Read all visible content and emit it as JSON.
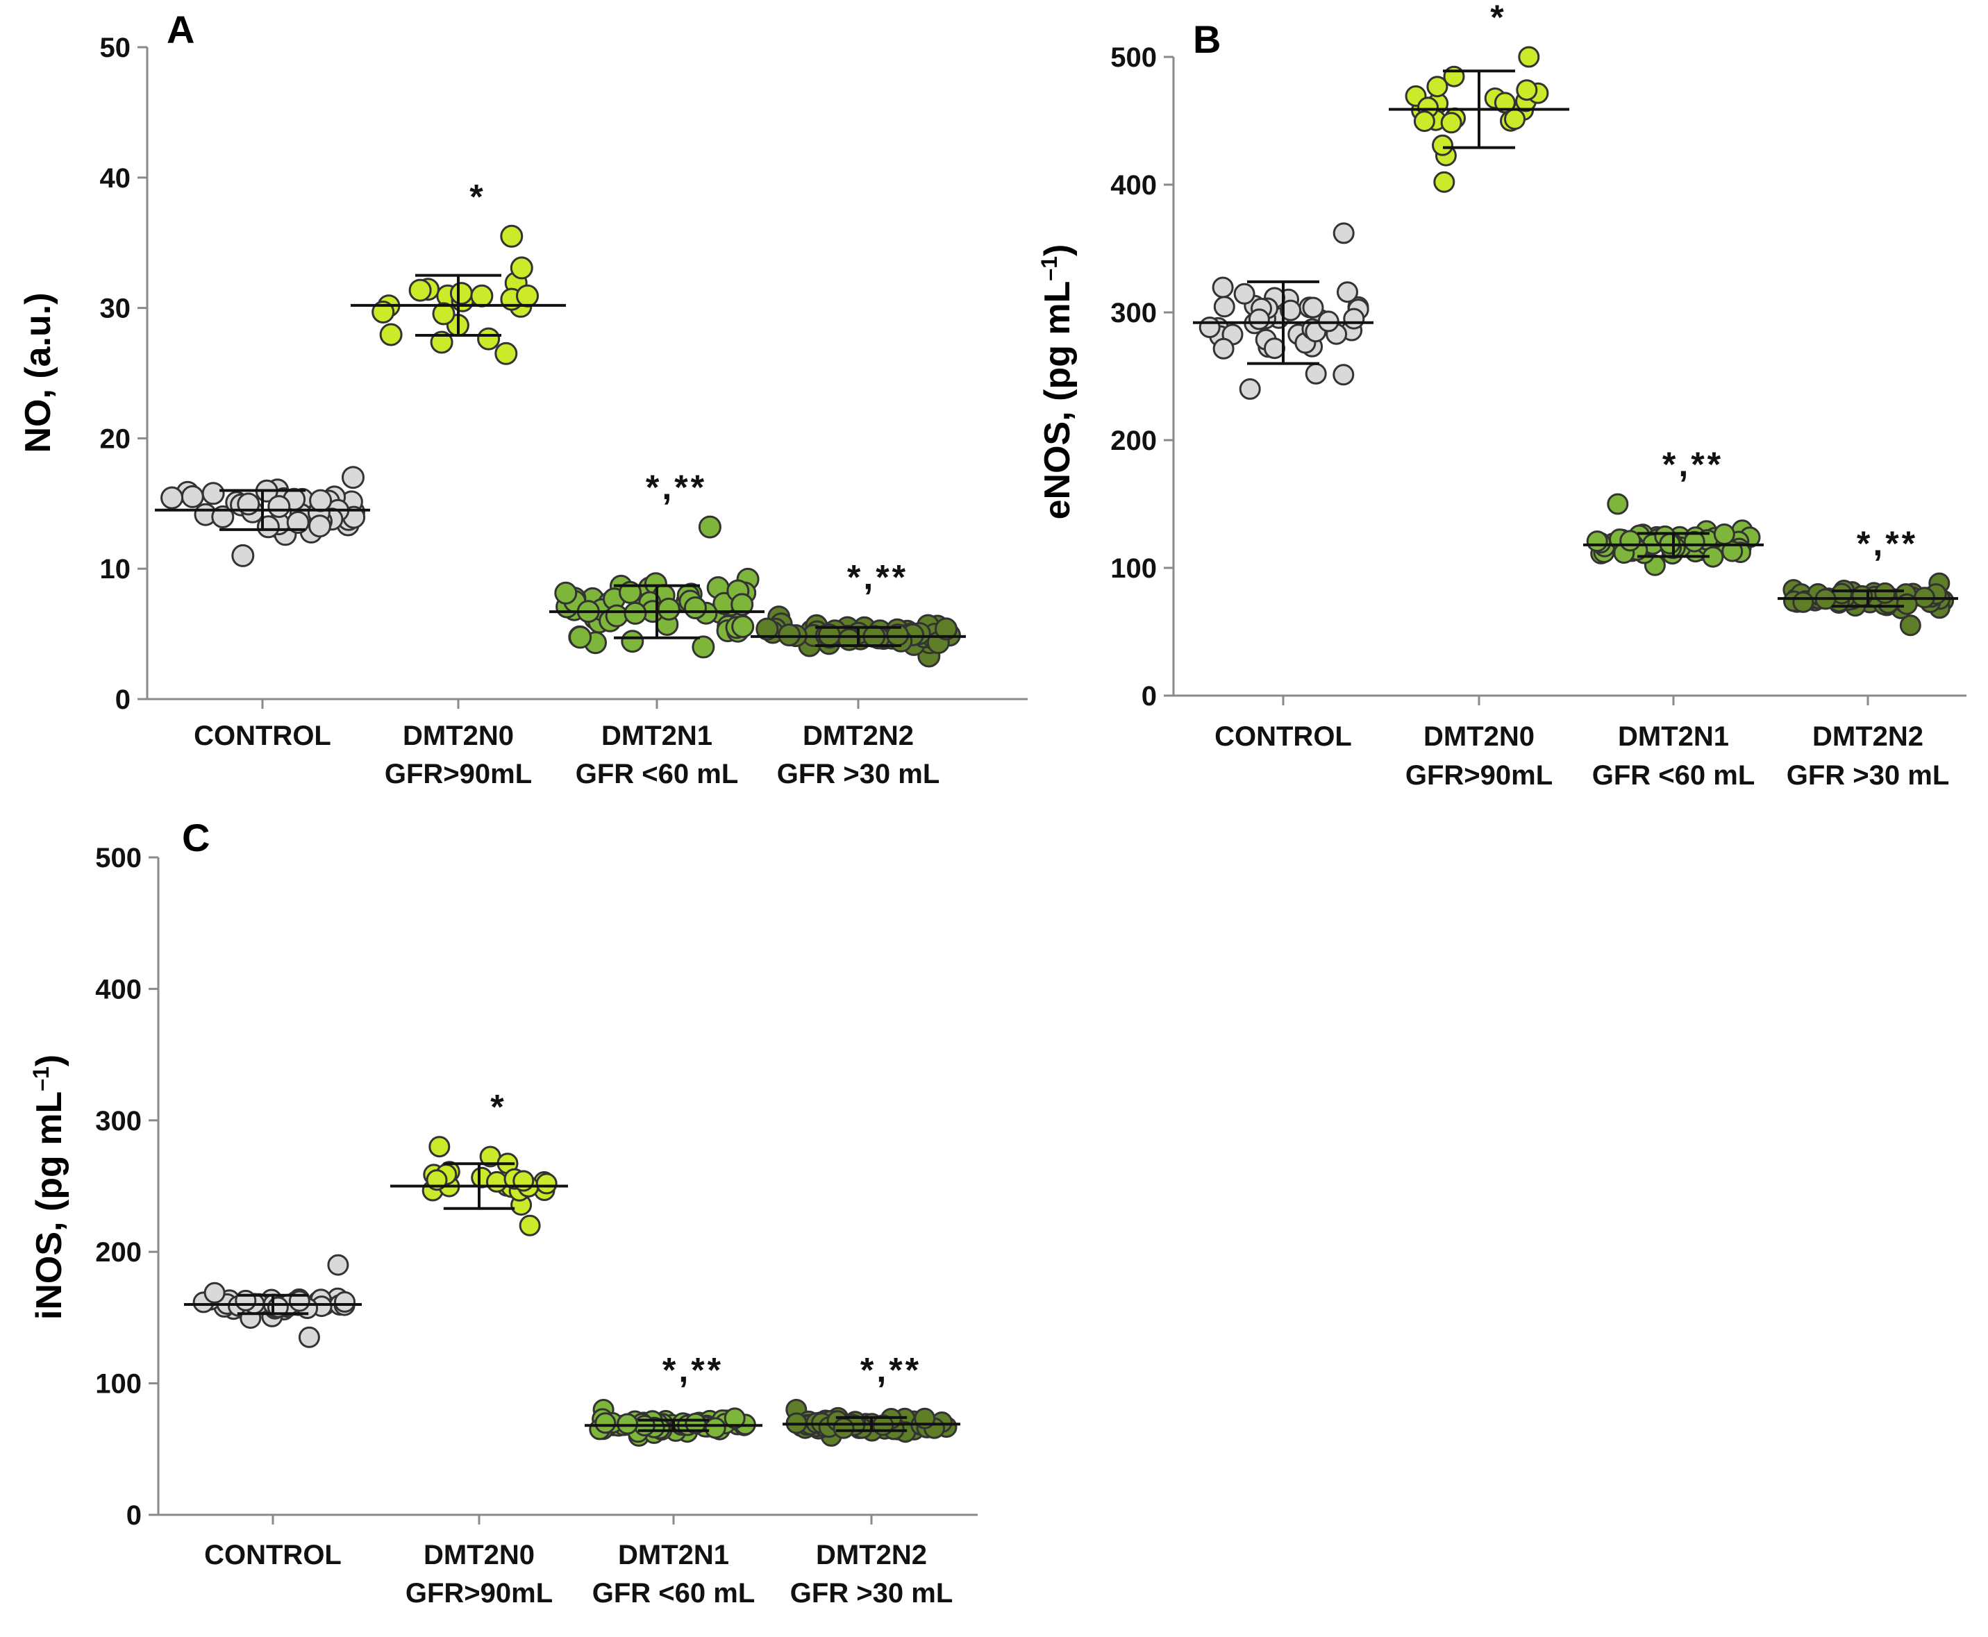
{
  "colors": {
    "CONTROL": "#d9d9d9",
    "DMT2N0": "#ccea2a",
    "DMT2N1": "#7db63a",
    "DMT2N2": "#5e7e28"
  },
  "chart_data": [
    {
      "type": "scatter",
      "panel": "A",
      "ylabel": "NO, (a.u.)",
      "ylim": [
        0,
        50
      ],
      "yticks": [
        0,
        10,
        20,
        30,
        40,
        50
      ],
      "grid": false,
      "categories": [
        {
          "label": [
            "CONTROL"
          ],
          "key": "CONTROL"
        },
        {
          "label": [
            "DMT2N0",
            "GFR>90mL"
          ],
          "key": "DMT2N0"
        },
        {
          "label": [
            "DMT2N1",
            "GFR <60 mL"
          ],
          "key": "DMT2N1"
        },
        {
          "label": [
            "DMT2N2",
            "GFR >30 mL"
          ],
          "key": "DMT2N2"
        }
      ],
      "series": [
        {
          "name": "CONTROL",
          "mean": 14.5,
          "sd": 1.5,
          "n": 40,
          "min": 11,
          "max": 17,
          "annotation": ""
        },
        {
          "name": "DMT2N0",
          "mean": 30.2,
          "sd": 2.3,
          "n": 20,
          "min": 26.5,
          "max": 35.5,
          "annotation": "*"
        },
        {
          "name": "DMT2N1",
          "mean": 6.7,
          "sd": 2.0,
          "n": 55,
          "min": 4,
          "max": 13.2,
          "annotation": "*,**"
        },
        {
          "name": "DMT2N2",
          "mean": 4.8,
          "sd": 0.7,
          "n": 55,
          "min": 3.3,
          "max": 6.3,
          "annotation": "*,**"
        }
      ]
    },
    {
      "type": "scatter",
      "panel": "B",
      "ylabel": "eNOS, (pg mL–1)",
      "ylabel_main": "eNOS, (pg mL",
      "ylabel_sup": "–1",
      "ylabel_end": ")",
      "ylim": [
        0,
        500
      ],
      "yticks": [
        0,
        100,
        200,
        300,
        400,
        500
      ],
      "grid": false,
      "categories": [
        {
          "label": [
            "CONTROL"
          ],
          "key": "CONTROL"
        },
        {
          "label": [
            "DMT2N0",
            "GFR>90mL"
          ],
          "key": "DMT2N0"
        },
        {
          "label": [
            "DMT2N1",
            "GFR <60 mL"
          ],
          "key": "DMT2N1"
        },
        {
          "label": [
            "DMT2N2",
            "GFR >30 mL"
          ],
          "key": "DMT2N2"
        }
      ],
      "series": [
        {
          "name": "CONTROL",
          "mean": 292,
          "sd": 32,
          "n": 40,
          "min": 240,
          "max": 362,
          "annotation": ""
        },
        {
          "name": "DMT2N0",
          "mean": 459,
          "sd": 30,
          "n": 22,
          "min": 402,
          "max": 500,
          "annotation": "*"
        },
        {
          "name": "DMT2N1",
          "mean": 118,
          "sd": 9,
          "n": 55,
          "min": 102,
          "max": 150,
          "annotation": "*,**"
        },
        {
          "name": "DMT2N2",
          "mean": 76,
          "sd": 6,
          "n": 55,
          "min": 55,
          "max": 88,
          "annotation": "*,**"
        }
      ]
    },
    {
      "type": "scatter",
      "panel": "C",
      "ylabel": "iNOS, (pg mL–1)",
      "ylabel_main": "iNOS, (pg mL",
      "ylabel_sup": "–1",
      "ylabel_end": ")",
      "ylim": [
        0,
        500
      ],
      "yticks": [
        0,
        100,
        200,
        300,
        400,
        500
      ],
      "grid": false,
      "categories": [
        {
          "label": [
            "CONTROL"
          ],
          "key": "CONTROL"
        },
        {
          "label": [
            "DMT2N0",
            "GFR>90mL"
          ],
          "key": "DMT2N0"
        },
        {
          "label": [
            "DMT2N1",
            "GFR <60 mL"
          ],
          "key": "DMT2N1"
        },
        {
          "label": [
            "DMT2N2",
            "GFR >30 mL"
          ],
          "key": "DMT2N2"
        }
      ],
      "series": [
        {
          "name": "CONTROL",
          "mean": 160,
          "sd": 7,
          "n": 40,
          "min": 135,
          "max": 190,
          "annotation": ""
        },
        {
          "name": "DMT2N0",
          "mean": 250,
          "sd": 17,
          "n": 22,
          "min": 220,
          "max": 280,
          "annotation": "*"
        },
        {
          "name": "DMT2N1",
          "mean": 68,
          "sd": 4,
          "n": 55,
          "min": 60,
          "max": 80,
          "annotation": "*,**"
        },
        {
          "name": "DMT2N2",
          "mean": 69,
          "sd": 5,
          "n": 55,
          "min": 60,
          "max": 80,
          "annotation": "*,**"
        }
      ]
    }
  ]
}
